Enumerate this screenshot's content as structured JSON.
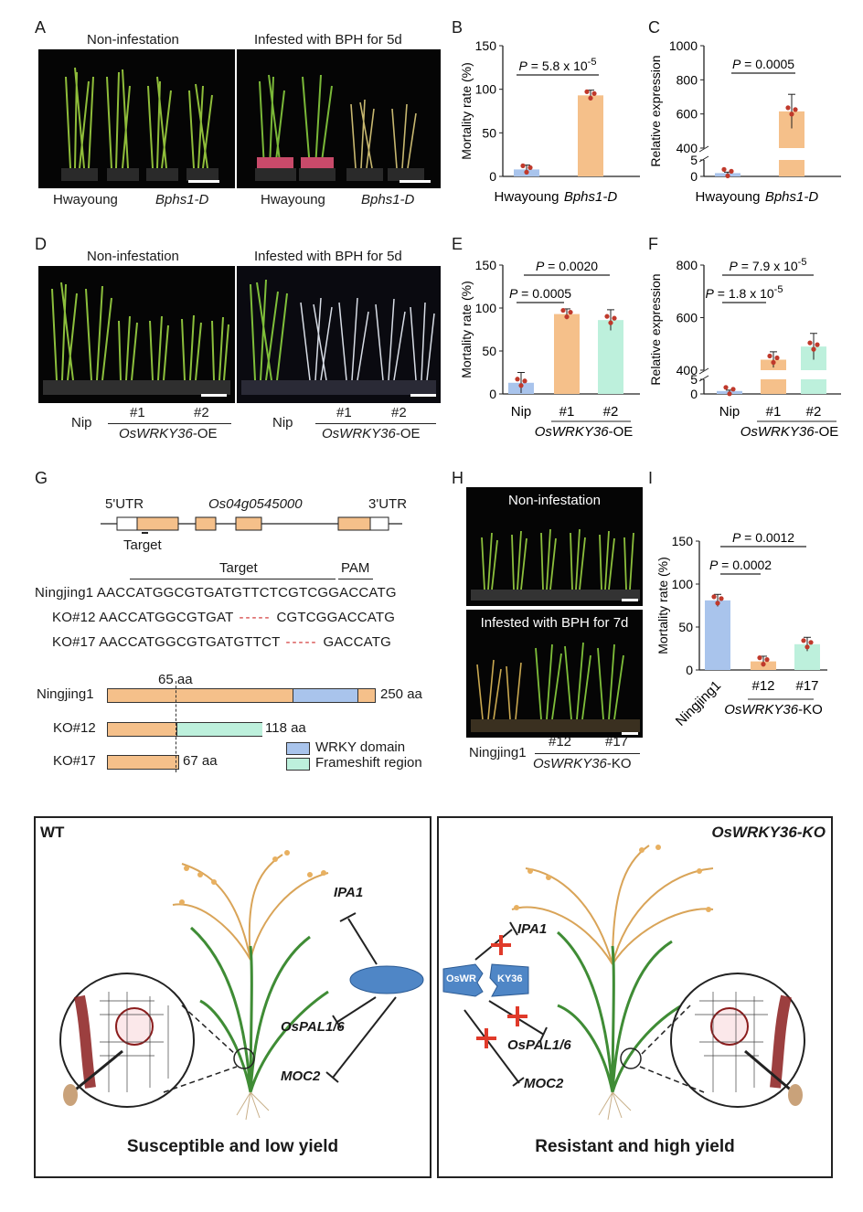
{
  "panels": {
    "A": {
      "letter": "A",
      "left_caption": "Non-infestation",
      "right_caption": "Infested with BPH for 5d",
      "labels": [
        "Hwayoung",
        "Bphs1-D",
        "Hwayoung",
        "Bphs1-D"
      ]
    },
    "D": {
      "letter": "D",
      "left_caption": "Non-infestation",
      "right_caption": "Infested with BPH for 5d",
      "nip": "Nip",
      "line1": "#1",
      "line2": "#2",
      "group": "OsWRKY36-OE",
      "group_it": "OsWRKY36",
      "group_suffix": "-OE"
    },
    "G": {
      "letter": "G",
      "utr5": "5'UTR",
      "gene": "Os04g0545000",
      "utr3": "3'UTR",
      "target_small": "Target",
      "target": "Target",
      "pam": "PAM",
      "rows": [
        {
          "name": "Ningjing1",
          "seq": "AACCATGGCGTGATGTTCTCGTCGGACCATG",
          "del": "",
          "tail": ""
        },
        {
          "name": "KO#12",
          "seq": "AACCATGGCGTGAT",
          "del": "-----",
          "tail": "CGTCGGACCATG"
        },
        {
          "name": "KO#17",
          "seq": "AACCATGGCGTGATGTTCT",
          "del": "-----",
          "tail": "GACCATG"
        }
      ],
      "aa_mark": "65 aa",
      "proteins": [
        {
          "name": "Ningjing1",
          "len": "250 aa"
        },
        {
          "name": "KO#12",
          "len": "118 aa"
        },
        {
          "name": "KO#17",
          "len": "67 aa"
        }
      ],
      "legend": [
        {
          "label": "WRKY domain",
          "color": "#a9c4ec"
        },
        {
          "label": "Frameshift region",
          "color": "#bdf0dc"
        }
      ]
    },
    "H": {
      "letter": "H",
      "top_caption": "Non-infestation",
      "bottom_caption": "Infested with BPH for 7d",
      "wt": "Ningjing1",
      "line1": "#12",
      "line2": "#17",
      "group_it": "OsWRKY36",
      "group_suffix": "-KO"
    },
    "model": {
      "wt_title": "WT",
      "ko_title": "OsWRKY36-KO",
      "wt_caption": "Susceptible and low yield",
      "ko_caption": "Resistant and high yield",
      "protein": "OsWRKY36",
      "protein_left": "OsWR",
      "protein_right": "KY36",
      "targets": [
        "IPA1",
        "OsPAL1/6",
        "MOC2"
      ]
    }
  },
  "colors": {
    "blue": "#a9c4ec",
    "orange": "#f5c08a",
    "green": "#bdf0dc",
    "dot": "#c0392b"
  },
  "chart_data": [
    {
      "id": "B",
      "type": "bar",
      "categories": [
        "Hwayoung",
        "Bphs1-D"
      ],
      "values": [
        8,
        93
      ],
      "errors": [
        5,
        6
      ],
      "ylabel": "Mortality rate (%)",
      "ylim": [
        0,
        150
      ],
      "yticks": [
        0,
        50,
        100,
        150
      ],
      "pvalues": [
        {
          "text": "P = 5.8 x 10",
          "sup": "-5"
        }
      ]
    },
    {
      "id": "C",
      "type": "bar",
      "categories": [
        "Hwayoung",
        "Bphs1-D"
      ],
      "values": [
        1,
        615
      ],
      "errors": [
        0.3,
        100
      ],
      "ylabel": "Relative expression",
      "ylim": [
        0,
        1000
      ],
      "yticks_upper": [
        400,
        600,
        800,
        1000
      ],
      "yticks_lower": [
        0,
        5
      ],
      "pvalues": [
        {
          "text": "P = 0.0005",
          "sup": ""
        }
      ]
    },
    {
      "id": "E",
      "type": "bar",
      "categories": [
        "Nip",
        "#1",
        "#2"
      ],
      "values": [
        13,
        93,
        86
      ],
      "errors": [
        12,
        6,
        12
      ],
      "ylabel": "Mortality rate (%)",
      "ylim": [
        0,
        150
      ],
      "yticks": [
        0,
        50,
        100,
        150
      ],
      "group_label": "OsWRKY36-OE",
      "pvalues": [
        {
          "text": "P = 0.0020",
          "sup": ""
        },
        {
          "text": "P = 0.0005",
          "sup": ""
        }
      ]
    },
    {
      "id": "F",
      "type": "bar",
      "categories": [
        "Nip",
        "#1",
        "#2"
      ],
      "values": [
        1,
        440,
        490
      ],
      "errors": [
        0.3,
        30,
        50
      ],
      "ylabel": "Relative expression",
      "yticks_upper": [
        400,
        600,
        800
      ],
      "yticks_lower": [
        0,
        5
      ],
      "group_label": "OsWRKY36-OE",
      "pvalues": [
        {
          "text": "P = 7.9 x 10",
          "sup": "-5"
        },
        {
          "text": "P = 1.8 x 10",
          "sup": "-5"
        }
      ]
    },
    {
      "id": "I",
      "type": "bar",
      "categories": [
        "Ningjing1",
        "#12",
        "#17"
      ],
      "values": [
        81,
        10,
        30
      ],
      "errors": [
        7,
        6,
        8
      ],
      "ylabel": "Mortality rate (%)",
      "ylim": [
        0,
        150
      ],
      "yticks": [
        0,
        50,
        100,
        150
      ],
      "group_label": "OsWRKY36-KO",
      "pvalues": [
        {
          "text": "P = 0.0012",
          "sup": ""
        },
        {
          "text": "P = 0.0002",
          "sup": ""
        }
      ]
    }
  ]
}
